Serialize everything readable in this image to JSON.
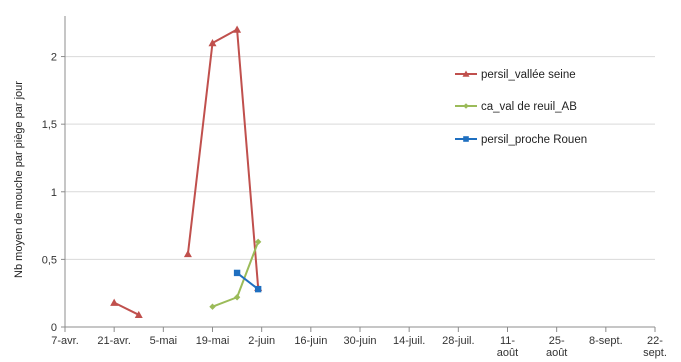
{
  "chart_data": {
    "type": "line",
    "ylabel": "Nb moyen de mouche par piège par jour",
    "x_ticks": [
      {
        "label": [
          "7-avr."
        ],
        "day": 0
      },
      {
        "label": [
          "21-avr."
        ],
        "day": 14
      },
      {
        "label": [
          "5-mai"
        ],
        "day": 28
      },
      {
        "label": [
          "19-mai"
        ],
        "day": 42
      },
      {
        "label": [
          "2-juin"
        ],
        "day": 56
      },
      {
        "label": [
          "16-juin"
        ],
        "day": 70
      },
      {
        "label": [
          "30-juin"
        ],
        "day": 84
      },
      {
        "label": [
          "14-juil."
        ],
        "day": 98
      },
      {
        "label": [
          "28-juil."
        ],
        "day": 112
      },
      {
        "label": [
          "11-",
          "août"
        ],
        "day": 126
      },
      {
        "label": [
          "25-",
          "août"
        ],
        "day": 140
      },
      {
        "label": [
          "8-sept."
        ],
        "day": 154
      },
      {
        "label": [
          "22-",
          "sept."
        ],
        "day": 168
      }
    ],
    "x_range_days": [
      0,
      168
    ],
    "y_ticks": [
      "0",
      "0,5",
      "1",
      "1,5",
      "2"
    ],
    "ylim": [
      0,
      2.3
    ],
    "grid": "horizontal",
    "legend_position": "right",
    "series": [
      {
        "name": "persil_vallée seine",
        "color": "#C0504D",
        "marker": "triangle",
        "segments": [
          [
            {
              "date": "2015-04-21",
              "day": 14,
              "y": 0.18
            },
            {
              "date": "2015-04-28",
              "day": 21,
              "y": 0.09
            }
          ],
          [
            {
              "date": "2015-05-12",
              "day": 35,
              "y": 0.54
            },
            {
              "date": "2015-05-19",
              "day": 42,
              "y": 2.1
            },
            {
              "date": "2015-05-26",
              "day": 49,
              "y": 2.2
            },
            {
              "date": "2015-06-01",
              "day": 55,
              "y": 0.29
            }
          ]
        ]
      },
      {
        "name": "ca_val de reuil_AB",
        "color": "#9BBB59",
        "marker": "diamond",
        "segments": [
          [
            {
              "date": "2015-05-19",
              "day": 42,
              "y": 0.15
            },
            {
              "date": "2015-05-26",
              "day": 49,
              "y": 0.22
            },
            {
              "date": "2015-06-01",
              "day": 55,
              "y": 0.63
            }
          ]
        ]
      },
      {
        "name": "persil_proche Rouen",
        "color": "#1F6FC0",
        "marker": "square",
        "segments": [
          [
            {
              "date": "2015-05-26",
              "day": 49,
              "y": 0.4
            },
            {
              "date": "2015-06-01",
              "day": 55,
              "y": 0.28
            }
          ]
        ]
      }
    ]
  }
}
